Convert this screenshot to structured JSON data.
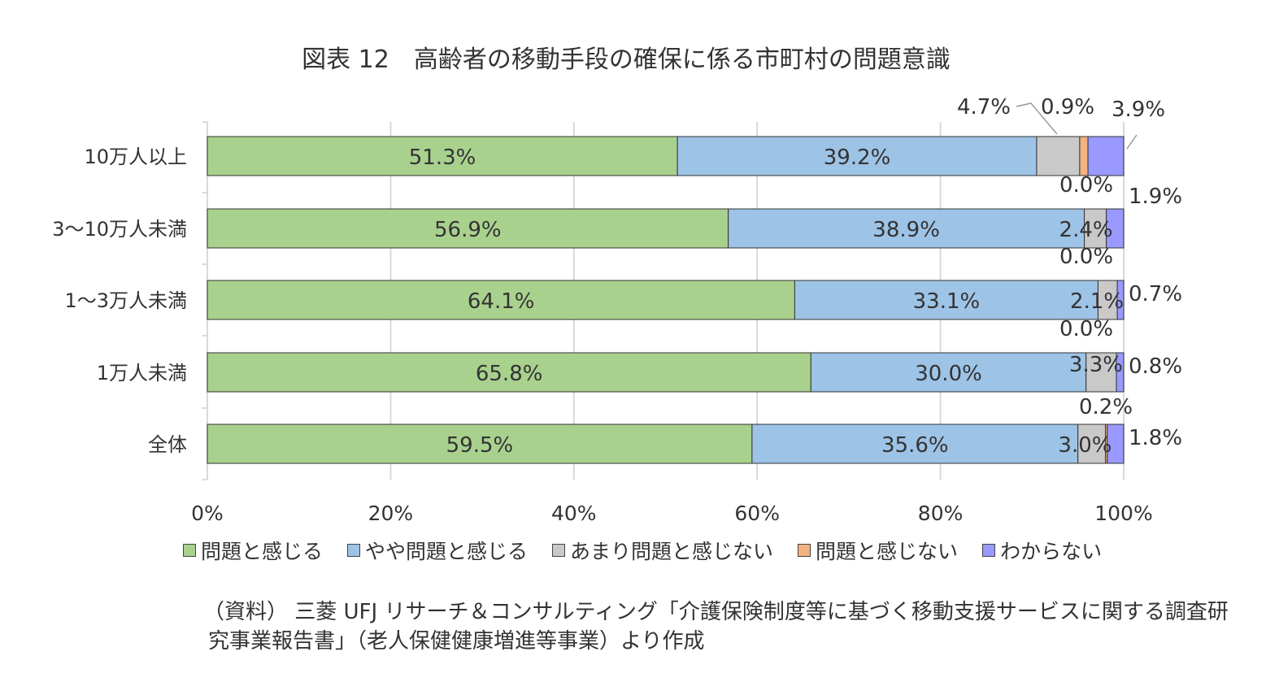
{
  "title": "図表 12　高齢者の移動手段の確保に係る市町村の問題意識",
  "colors": {
    "問題と感じる": "#a9d18e",
    "やや問題と感じる": "#9dc3e6",
    "あまり問題と感じない": "#c9c9c9",
    "問題と感じない": "#f4b183",
    "わからない": "#9999ff",
    "axis": "#d9d9d9",
    "bar_border": "#333333",
    "text": "#333333"
  },
  "chart_data": {
    "type": "bar",
    "orientation": "horizontal",
    "stacked": "percent",
    "categories": [
      "10万人以上",
      "3～10万人未満",
      "1～3万人未満",
      "1万人未満",
      "全体"
    ],
    "series": [
      {
        "name": "問題と感じる",
        "values": [
          51.3,
          56.9,
          64.1,
          65.8,
          59.5
        ]
      },
      {
        "name": "やや問題と感じる",
        "values": [
          39.2,
          38.9,
          33.1,
          30.0,
          35.6
        ]
      },
      {
        "name": "あまり問題と感じない",
        "values": [
          4.7,
          2.4,
          2.1,
          3.3,
          3.0
        ]
      },
      {
        "name": "問題と感じない",
        "values": [
          0.9,
          0.0,
          0.0,
          0.0,
          0.2
        ]
      },
      {
        "name": "わからない",
        "values": [
          3.9,
          1.9,
          0.7,
          0.8,
          1.8
        ]
      }
    ],
    "data_labels": [
      [
        "51.3%",
        "39.2%",
        "4.7%",
        "0.9%",
        "3.9%"
      ],
      [
        "56.9%",
        "38.9%",
        "2.4%",
        "0.0%",
        "1.9%"
      ],
      [
        "64.1%",
        "33.1%",
        "2.1%",
        "0.0%",
        "0.7%"
      ],
      [
        "65.8%",
        "30.0%",
        "3.3%",
        "0.0%",
        "0.8%"
      ],
      [
        "59.5%",
        "35.6%",
        "3.0%",
        "0.2%",
        "1.8%"
      ]
    ],
    "xlim": [
      0,
      100
    ],
    "x_ticks": [
      "0%",
      "20%",
      "40%",
      "60%",
      "80%",
      "100%"
    ],
    "grid": true,
    "legend_position": "bottom"
  },
  "source_note": {
    "line1": "（資料） 三菱 UFJ リサーチ＆コンサルティング「介護保険制度等に基づく移動支援サービスに関する調査研",
    "line2": "究事業報告書」（老人保健健康増進等事業）より作成"
  }
}
